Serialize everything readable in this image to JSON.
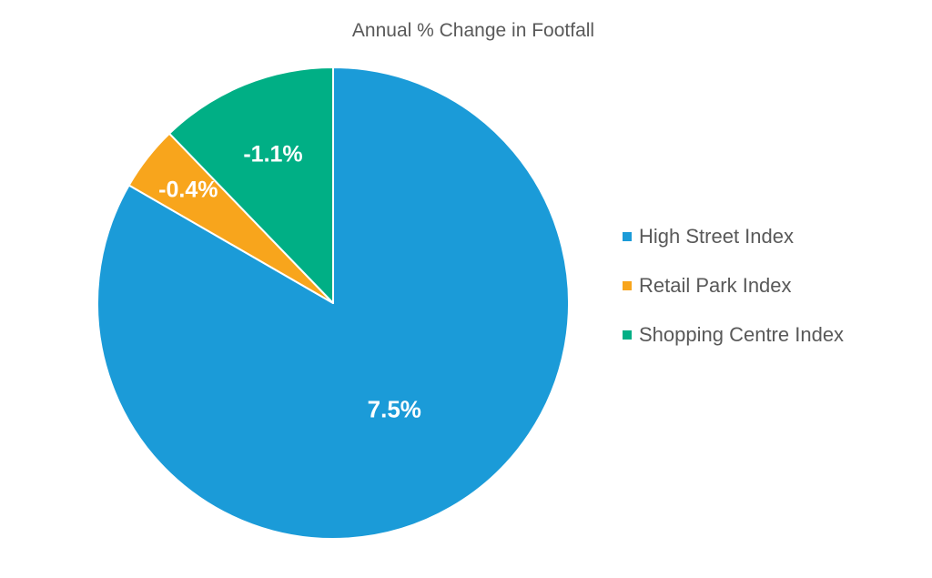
{
  "chart_data": {
    "type": "pie",
    "title": "Annual % Change in Footfall",
    "categories": [
      "High Street Index",
      "Retail Park Index",
      "Shopping Centre Index"
    ],
    "values": [
      7.5,
      -0.4,
      -1.1
    ],
    "labels": [
      "7.5%",
      "-0.4%",
      "-1.1%"
    ],
    "colors": [
      "#1B9BD8",
      "#F8A51C",
      "#00AF85"
    ],
    "legend_position": "right",
    "start_angle": "top",
    "direction": "clockwise"
  }
}
